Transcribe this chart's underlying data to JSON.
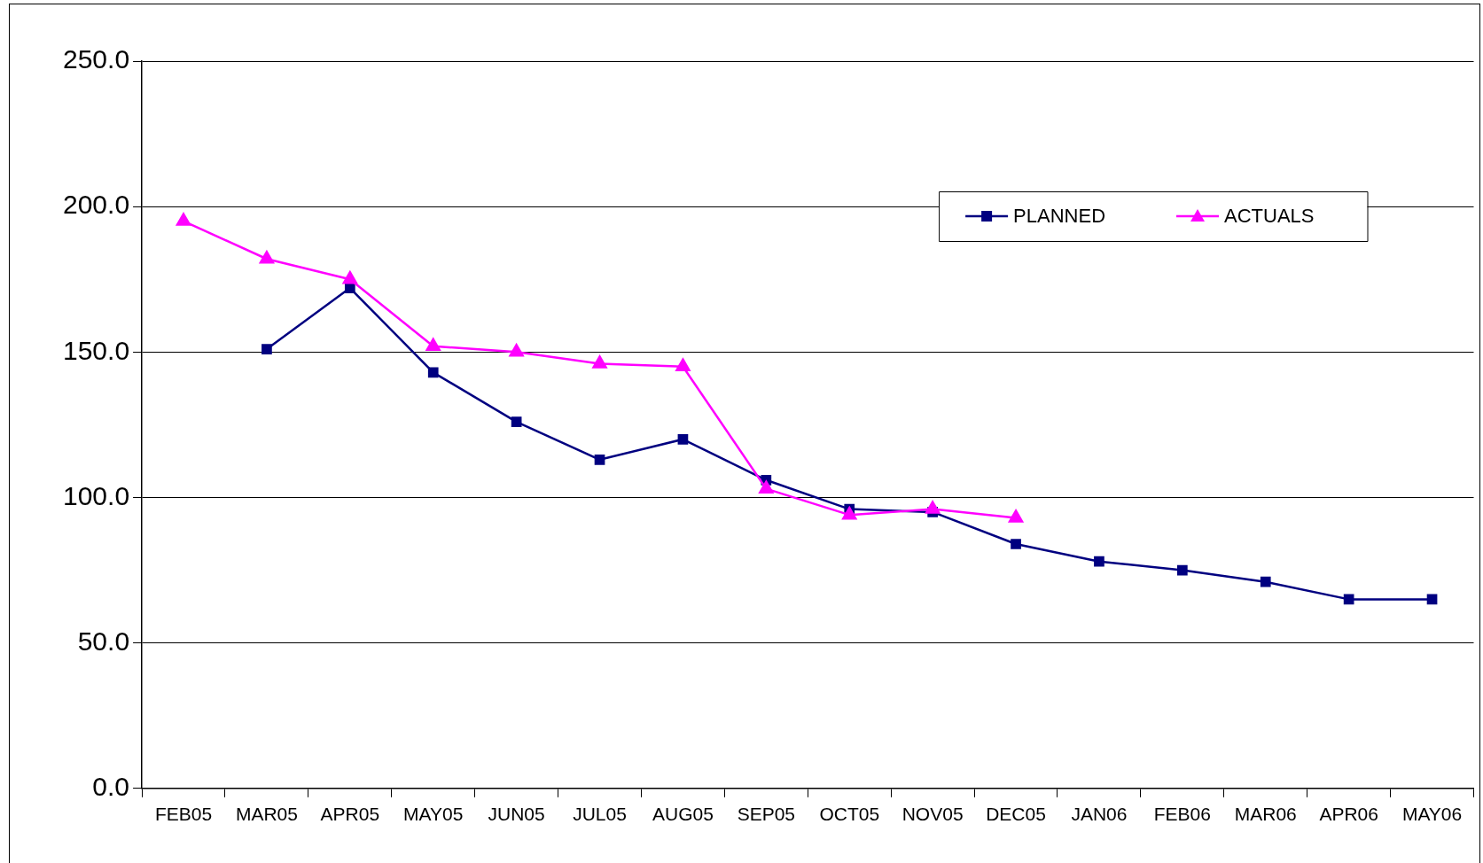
{
  "chart_data": {
    "type": "line",
    "categories": [
      "FEB05",
      "MAR05",
      "APR05",
      "MAY05",
      "JUN05",
      "JUL05",
      "AUG05",
      "SEP05",
      "OCT05",
      "NOV05",
      "DEC05",
      "JAN06",
      "FEB06",
      "MAR06",
      "APR06",
      "MAY06"
    ],
    "series": [
      {
        "name": "PLANNED",
        "color": "#000080",
        "marker": "square",
        "values": [
          null,
          151,
          172,
          143,
          126,
          113,
          120,
          106,
          96,
          95,
          84,
          78,
          75,
          71,
          65,
          65
        ]
      },
      {
        "name": "ACTUALS",
        "color": "#ff00ff",
        "marker": "triangle",
        "values": [
          195,
          182,
          175,
          152,
          150,
          146,
          145,
          103,
          94,
          96,
          93,
          null,
          null,
          null,
          null,
          null
        ]
      }
    ],
    "ylim": [
      0,
      250
    ],
    "yticks": [
      {
        "value": 0,
        "label": "0.0"
      },
      {
        "value": 50,
        "label": "50.0"
      },
      {
        "value": 100,
        "label": "100.0"
      },
      {
        "value": 150,
        "label": "150.0"
      },
      {
        "value": 200,
        "label": "200.0"
      },
      {
        "value": 250,
        "label": "250.0"
      }
    ],
    "grid": "y",
    "legend": "top right"
  }
}
